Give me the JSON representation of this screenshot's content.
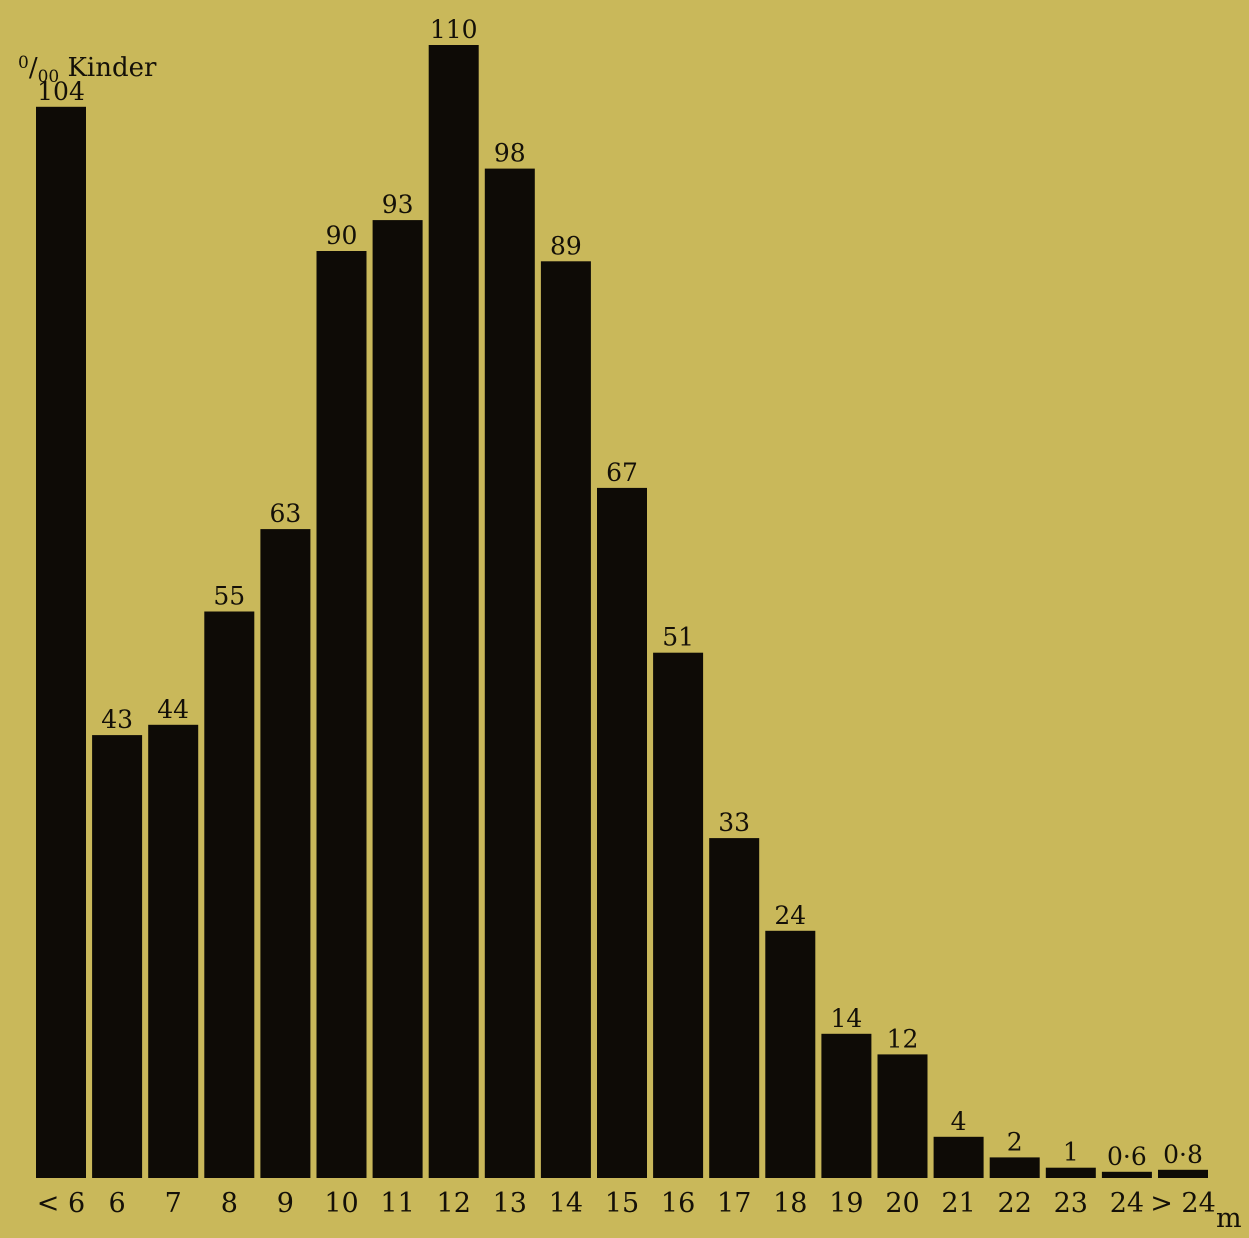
{
  "chart_data": {
    "type": "bar",
    "title": "",
    "ylabel": "0/00 Kinder",
    "ylabel_parts": {
      "number": "0",
      "unit": "00",
      "word": "Kinder"
    },
    "xlabel": "m",
    "categories": [
      "< 6",
      "6",
      "7",
      "8",
      "9",
      "10",
      "11",
      "12",
      "13",
      "14",
      "15",
      "16",
      "17",
      "18",
      "19",
      "20",
      "21",
      "22",
      "23",
      "24",
      "> 24"
    ],
    "values": [
      104,
      43,
      44,
      55,
      63,
      90,
      93,
      110,
      98,
      89,
      67,
      51,
      33,
      24,
      14,
      12,
      4,
      2,
      1,
      0.6,
      0.8
    ],
    "value_labels": [
      "104",
      "43",
      "44",
      "55",
      "63",
      "90",
      "93",
      "110",
      "98",
      "89",
      "67",
      "51",
      "33",
      "24",
      "14",
      "12",
      "4",
      "2",
      "1",
      "0·6",
      "0·8"
    ],
    "ylim": [
      0,
      110
    ],
    "grid": false,
    "bar_color": "#0e0b06",
    "background_color": "#c9b85a"
  }
}
